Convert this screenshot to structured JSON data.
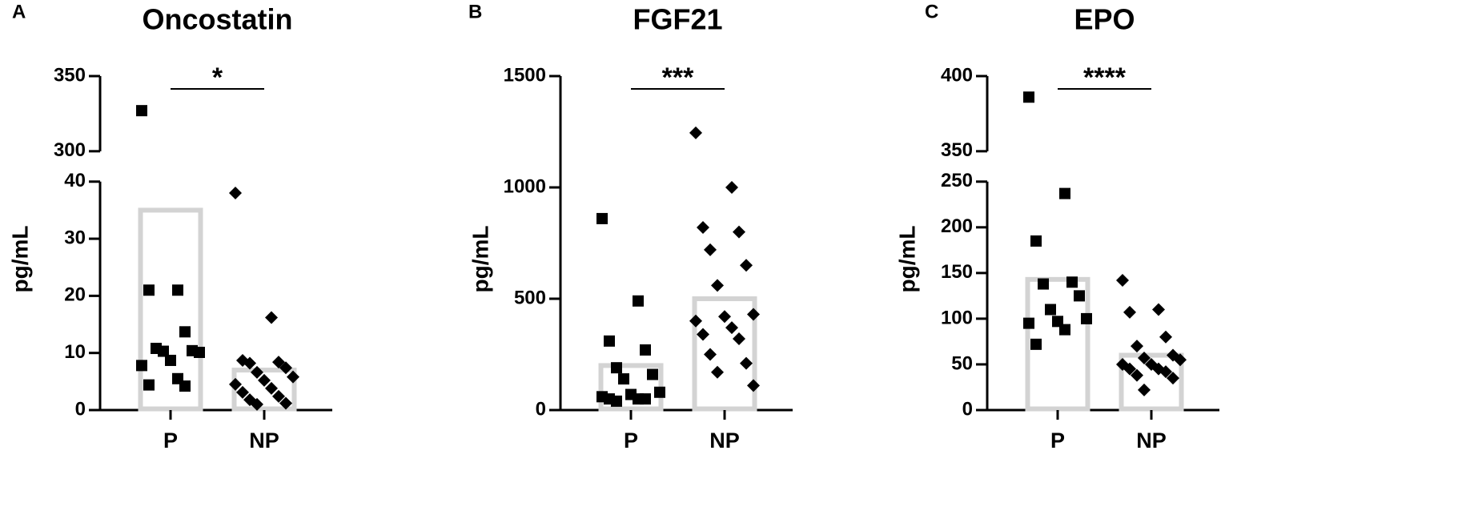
{
  "chart_data": [
    {
      "type": "bar",
      "panel": "A",
      "title": "Oncostatin",
      "ylabel": "pg/mL",
      "annotation": "*",
      "categories": [
        "P",
        "NP"
      ],
      "values": [
        35,
        7
      ],
      "color": "#d3d3d3",
      "point_color": "#000000",
      "markers": [
        "square",
        "diamond"
      ],
      "points": [
        [
          327,
          21,
          21,
          13.7,
          10.8,
          10.4,
          10.3,
          10.1,
          8.7,
          7.8,
          5.5,
          4.4,
          4.2
        ],
        [
          38,
          16.2,
          8.7,
          8.4,
          8.2,
          7.4,
          6.6,
          5.8,
          5.2,
          4.5,
          3.8,
          3.1,
          2.4,
          1.8,
          1.2,
          1.0
        ]
      ],
      "ylim": [
        0,
        350
      ],
      "ybreak": [
        40,
        300
      ],
      "yticks": [
        0,
        10,
        20,
        30,
        40,
        300,
        350
      ]
    },
    {
      "type": "bar",
      "panel": "B",
      "title": "FGF21",
      "ylabel": "pg/mL",
      "annotation": "***",
      "categories": [
        "P",
        "NP"
      ],
      "values": [
        200,
        500
      ],
      "color": "#d3d3d3",
      "point_color": "#000000",
      "markers": [
        "square",
        "diamond"
      ],
      "points": [
        [
          860,
          490,
          310,
          270,
          190,
          160,
          140,
          80,
          70,
          60,
          50,
          50,
          50,
          40
        ],
        [
          1245,
          1000,
          820,
          800,
          720,
          650,
          560,
          430,
          420,
          400,
          370,
          340,
          320,
          250,
          210,
          170,
          110
        ]
      ],
      "ylim": [
        0,
        1500
      ],
      "yticks": [
        0,
        500,
        1000,
        1500
      ]
    },
    {
      "type": "bar",
      "panel": "C",
      "title": "EPO",
      "ylabel": "pg/mL",
      "annotation": "****",
      "categories": [
        "P",
        "NP"
      ],
      "values": [
        143,
        60
      ],
      "color": "#d3d3d3",
      "point_color": "#000000",
      "markers": [
        "square",
        "diamond"
      ],
      "points": [
        [
          386,
          237,
          185,
          140,
          138,
          125,
          110,
          100,
          97,
          95,
          88,
          72
        ],
        [
          142,
          110,
          107,
          80,
          70,
          60,
          57,
          55,
          50,
          50,
          45,
          45,
          42,
          38,
          35,
          22
        ]
      ],
      "ylim": [
        0,
        400
      ],
      "ybreak": [
        250,
        350
      ],
      "yticks": [
        0,
        50,
        100,
        150,
        200,
        250,
        350,
        400
      ]
    }
  ]
}
